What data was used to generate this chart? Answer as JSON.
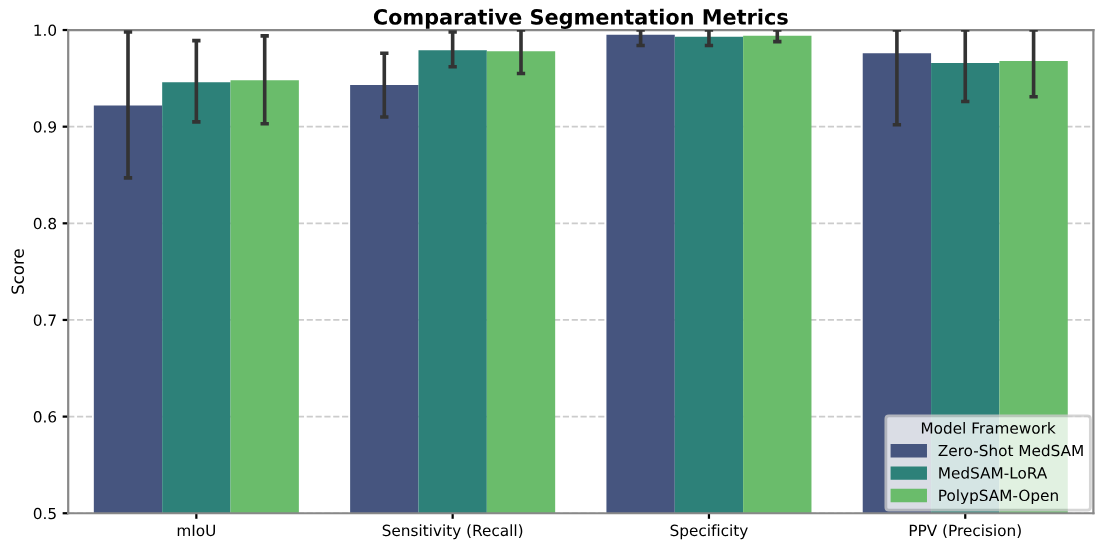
{
  "chart_data": {
    "type": "bar",
    "title": "Comparative Segmentation Metrics",
    "ylabel": "Score",
    "legend_title": "Model Framework",
    "categories": [
      "mIoU",
      "Sensitivity (Recall)",
      "Specificity",
      "PPV (Precision)"
    ],
    "series": [
      {
        "name": "Zero-Shot MedSAM",
        "color": "#46557f",
        "values": [
          0.922,
          0.943,
          0.995,
          0.976
        ],
        "errors": [
          [
            0.847,
            0.998
          ],
          [
            0.91,
            0.976
          ],
          [
            0.984,
            1.0
          ],
          [
            0.902,
            1.0
          ]
        ]
      },
      {
        "name": "MedSAM-LoRA",
        "color": "#2d8179",
        "values": [
          0.946,
          0.979,
          0.993,
          0.966
        ],
        "errors": [
          [
            0.905,
            0.989
          ],
          [
            0.962,
            0.998
          ],
          [
            0.984,
            1.0
          ],
          [
            0.926,
            1.0
          ]
        ]
      },
      {
        "name": "PolypSAM-Open",
        "color": "#6abc6b",
        "values": [
          0.948,
          0.978,
          0.994,
          0.968
        ],
        "errors": [
          [
            0.903,
            0.994
          ],
          [
            0.955,
            1.0
          ],
          [
            0.988,
            1.0
          ],
          [
            0.931,
            1.0
          ]
        ]
      }
    ],
    "ylim": [
      0.5,
      1.0
    ],
    "yticks": [
      0.5,
      0.6,
      0.7,
      0.8,
      0.9,
      {
        "value": 1,
        "label": "1.0"
      }
    ],
    "grid": "y",
    "legend": "bottom right"
  }
}
